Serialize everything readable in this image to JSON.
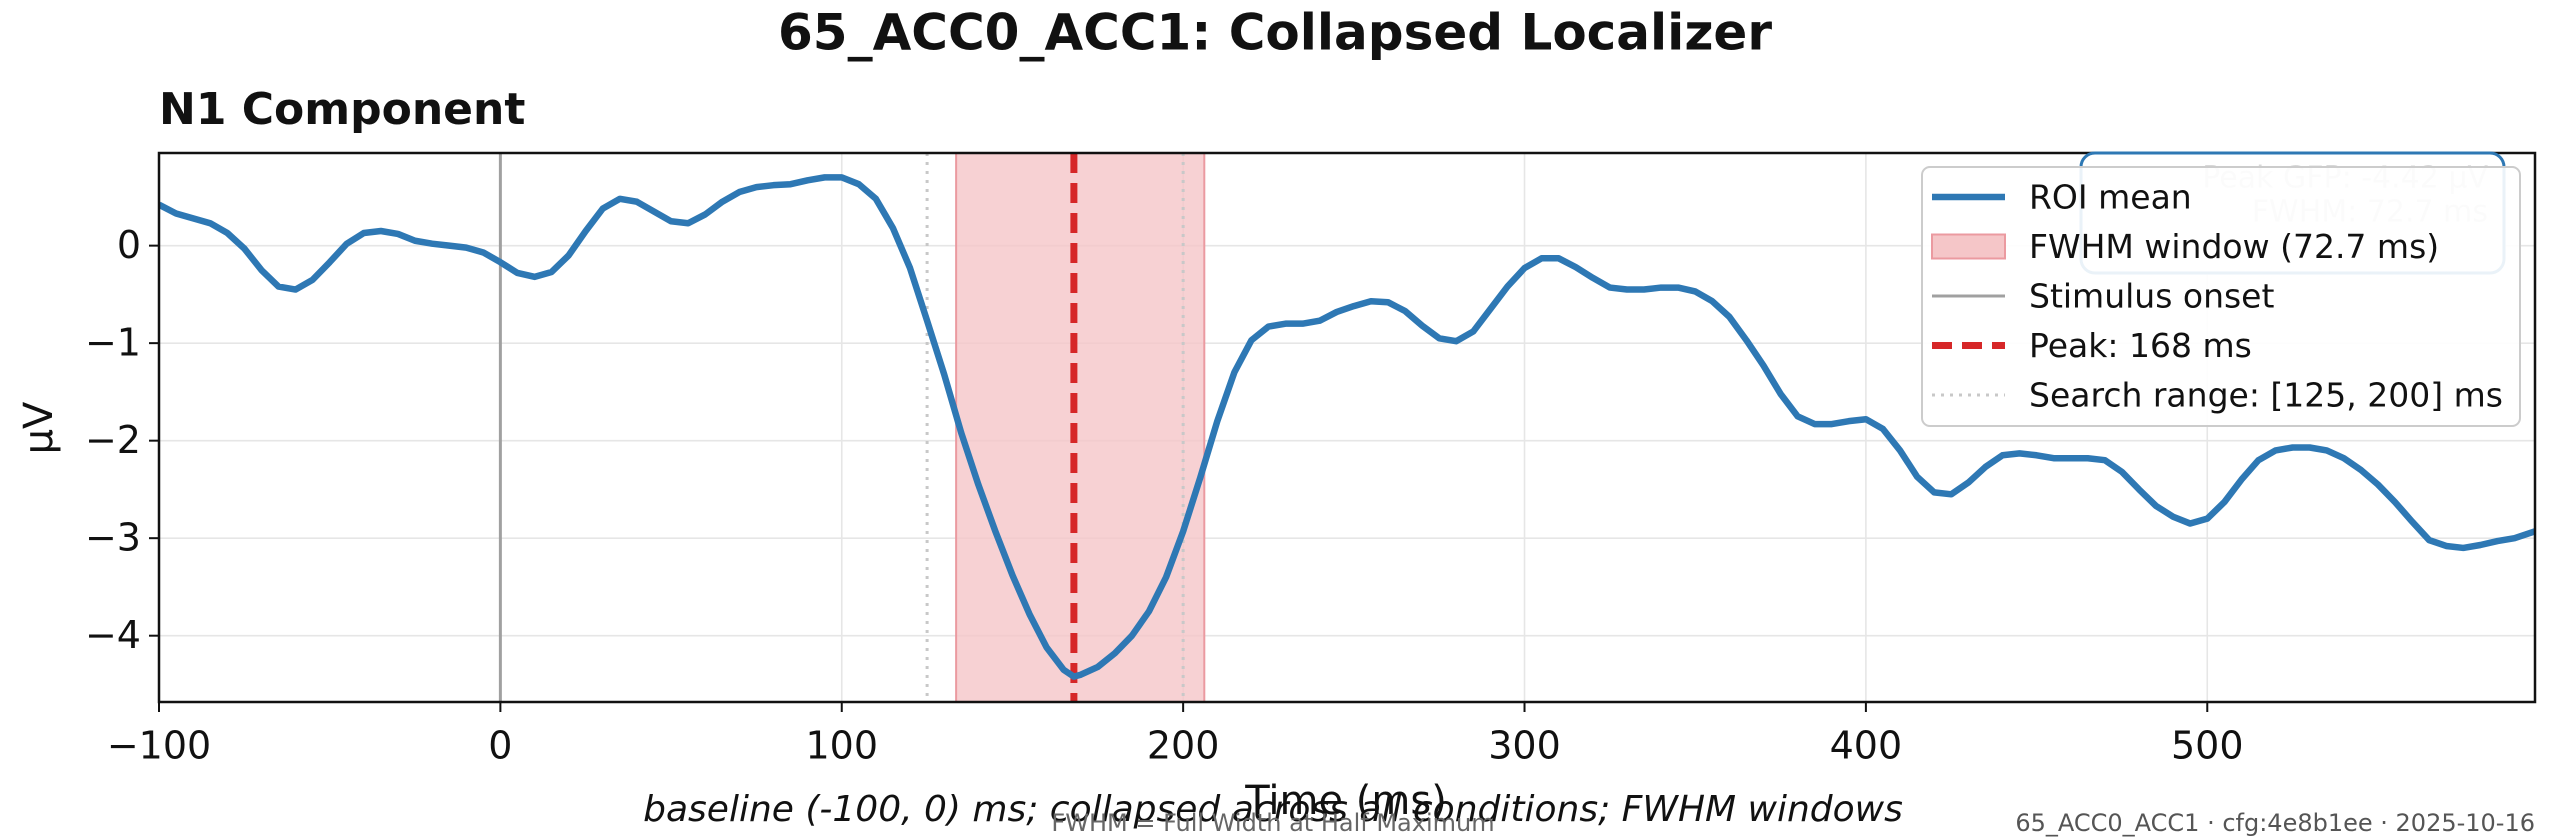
{
  "chart_data": {
    "type": "line",
    "title": "65_ACC0_ACC1: Collapsed Localizer",
    "subtitle": "N1 Component",
    "xlabel": "Time (ms)",
    "ylabel": "µV",
    "x": [
      -100,
      -95,
      -90,
      -85,
      -80,
      -75,
      -70,
      -65,
      -60,
      -55,
      -50,
      -45,
      -40,
      -35,
      -30,
      -25,
      -20,
      -15,
      -10,
      -5,
      0,
      5,
      10,
      15,
      20,
      25,
      30,
      35,
      40,
      45,
      50,
      55,
      60,
      65,
      70,
      75,
      80,
      85,
      90,
      95,
      100,
      105,
      110,
      115,
      120,
      125,
      130,
      135,
      140,
      145,
      150,
      155,
      160,
      165,
      168,
      170,
      175,
      180,
      185,
      190,
      195,
      200,
      205,
      210,
      215,
      220,
      225,
      230,
      235,
      240,
      245,
      250,
      255,
      260,
      265,
      270,
      275,
      280,
      285,
      290,
      295,
      300,
      305,
      310,
      315,
      320,
      325,
      330,
      335,
      340,
      345,
      350,
      355,
      360,
      365,
      370,
      375,
      380,
      385,
      390,
      395,
      400,
      405,
      410,
      415,
      420,
      425,
      430,
      435,
      440,
      445,
      450,
      455,
      460,
      465,
      470,
      475,
      480,
      485,
      490,
      495,
      500,
      505,
      510,
      515,
      520,
      525,
      530,
      535,
      540,
      545,
      550,
      555,
      560,
      565,
      570,
      575,
      580,
      585,
      590,
      596
    ],
    "series": [
      {
        "name": "ROI mean",
        "color": "#2e78b4",
        "values": [
          0.42,
          0.33,
          0.28,
          0.23,
          0.13,
          -0.03,
          -0.25,
          -0.42,
          -0.45,
          -0.35,
          -0.17,
          0.02,
          0.13,
          0.15,
          0.12,
          0.05,
          0.02,
          0.0,
          -0.02,
          -0.07,
          -0.17,
          -0.28,
          -0.32,
          -0.27,
          -0.1,
          0.15,
          0.38,
          0.48,
          0.45,
          0.35,
          0.25,
          0.23,
          0.32,
          0.45,
          0.55,
          0.6,
          0.62,
          0.63,
          0.67,
          0.7,
          0.7,
          0.63,
          0.48,
          0.18,
          -0.23,
          -0.77,
          -1.32,
          -1.92,
          -2.45,
          -2.93,
          -3.38,
          -3.78,
          -4.12,
          -4.35,
          -4.42,
          -4.4,
          -4.32,
          -4.18,
          -4.0,
          -3.75,
          -3.4,
          -2.93,
          -2.38,
          -1.8,
          -1.3,
          -0.97,
          -0.83,
          -0.8,
          -0.8,
          -0.77,
          -0.68,
          -0.62,
          -0.57,
          -0.58,
          -0.67,
          -0.82,
          -0.95,
          -0.98,
          -0.88,
          -0.65,
          -0.42,
          -0.23,
          -0.13,
          -0.13,
          -0.22,
          -0.33,
          -0.43,
          -0.45,
          -0.45,
          -0.43,
          -0.43,
          -0.47,
          -0.57,
          -0.73,
          -0.97,
          -1.23,
          -1.52,
          -1.75,
          -1.83,
          -1.83,
          -1.8,
          -1.78,
          -1.88,
          -2.1,
          -2.37,
          -2.53,
          -2.55,
          -2.43,
          -2.27,
          -2.15,
          -2.13,
          -2.15,
          -2.18,
          -2.18,
          -2.18,
          -2.2,
          -2.32,
          -2.5,
          -2.67,
          -2.78,
          -2.85,
          -2.8,
          -2.63,
          -2.4,
          -2.2,
          -2.1,
          -2.07,
          -2.07,
          -2.1,
          -2.18,
          -2.3,
          -2.45,
          -2.63,
          -2.83,
          -3.02,
          -3.08,
          -3.1,
          -3.07,
          -3.03,
          -3.0,
          -2.93
        ]
      }
    ],
    "regions": [
      {
        "name": "FWHM window (72.7 ms)",
        "x": [
          133.5,
          206.2
        ],
        "color": "#f5c6c8"
      }
    ],
    "vlines": [
      {
        "name": "Stimulus onset",
        "x": [
          0
        ],
        "color": "#a0a0a0",
        "style": "solid"
      },
      {
        "name": "Peak: 168 ms",
        "x": [
          168
        ],
        "color": "#d62728",
        "style": "dashed"
      },
      {
        "name": "Search range: [125, 200] ms",
        "x": [
          125,
          200
        ],
        "color": "#c8c8c8",
        "style": "dotted"
      }
    ],
    "xlim": [
      -100,
      596
    ],
    "ylim": [
      -4.68,
      0.95
    ],
    "xticks": [
      {
        "value": -100,
        "label": "−100"
      },
      0,
      100,
      200,
      300,
      400,
      500
    ],
    "yticks": [
      0,
      {
        "value": -1,
        "label": "−1"
      },
      {
        "value": -2,
        "label": "−2"
      },
      {
        "value": -3,
        "label": "−3"
      },
      {
        "value": -4,
        "label": "−4"
      }
    ],
    "grid": true,
    "legend": "upper right",
    "info_box": [
      "Peak GFP: -4.42 µV",
      "FWHM: 72.7 ms"
    ],
    "caption": "baseline (-100, 0) ms; collapsed across all conditions; FWHM windows",
    "footnote": "FWHM = Full Width at Half Maximum",
    "stamp": "65_ACC0_ACC1 · cfg:4e8b1ee · 2025-10-16"
  }
}
